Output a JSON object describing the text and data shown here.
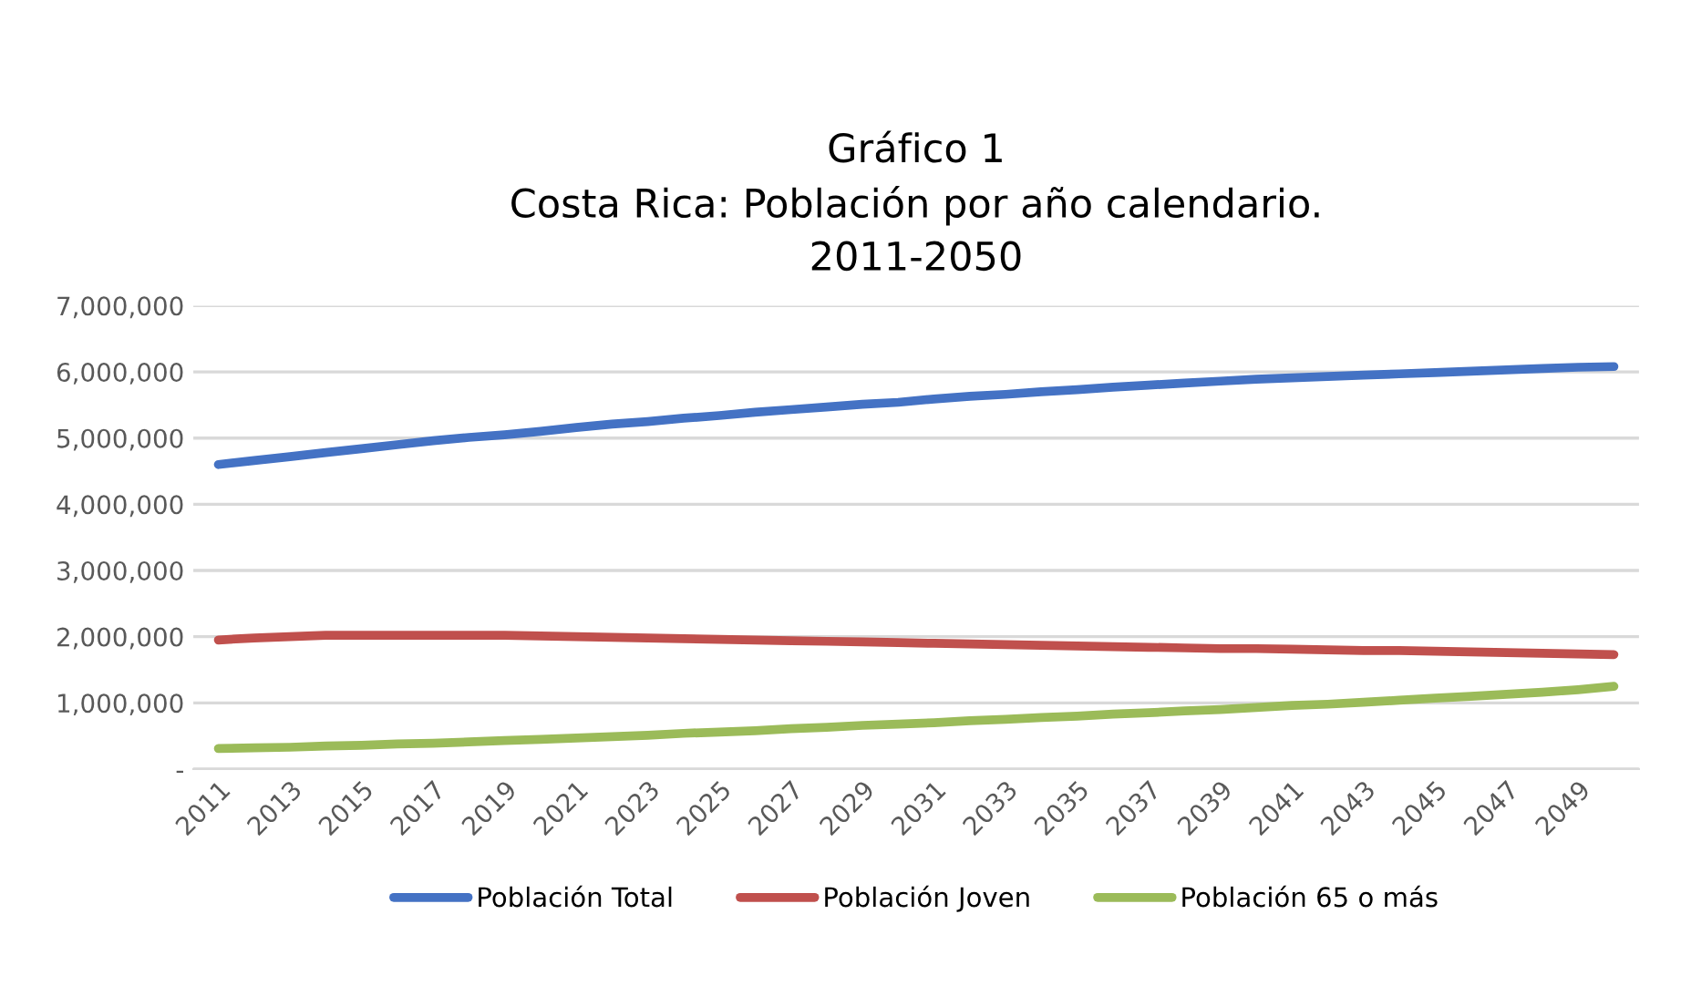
{
  "chart_data": {
    "type": "line",
    "title": "Gráfico 1\nCosta Rica: Población por año calendario.\n2011-2050",
    "categories": [
      "2011",
      null,
      "2013",
      null,
      "2015",
      null,
      "2017",
      null,
      "2019",
      null,
      "2021",
      null,
      "2023",
      null,
      "2025",
      null,
      "2027",
      null,
      "2029",
      null,
      "2031",
      null,
      "2033",
      null,
      "2035",
      null,
      "2037",
      null,
      "2039",
      null,
      "2041",
      null,
      "2043",
      null,
      "2045",
      null,
      "2047",
      null,
      "2049",
      null
    ],
    "series": [
      {
        "name": "Población Total",
        "color": "#4472c4",
        "values": [
          4600000,
          4660000,
          4720000,
          4780000,
          4840000,
          4900000,
          4960000,
          5010000,
          5050000,
          5100000,
          5160000,
          5210000,
          5250000,
          5300000,
          5340000,
          5390000,
          5430000,
          5470000,
          5510000,
          5540000,
          5590000,
          5630000,
          5660000,
          5700000,
          5730000,
          5770000,
          5800000,
          5830000,
          5860000,
          5890000,
          5910000,
          5930000,
          5950000,
          5970000,
          5990000,
          6010000,
          6030000,
          6050000,
          6070000,
          6080000
        ]
      },
      {
        "name": "Población Joven",
        "color": "#c0504d",
        "values": [
          1950000,
          1980000,
          2000000,
          2020000,
          2020000,
          2020000,
          2020000,
          2020000,
          2020000,
          2010000,
          2000000,
          1990000,
          1980000,
          1970000,
          1960000,
          1950000,
          1940000,
          1930000,
          1920000,
          1910000,
          1900000,
          1890000,
          1880000,
          1870000,
          1860000,
          1850000,
          1840000,
          1830000,
          1820000,
          1820000,
          1810000,
          1800000,
          1790000,
          1790000,
          1780000,
          1770000,
          1760000,
          1750000,
          1740000,
          1730000
        ]
      },
      {
        "name": "Población 65 o más",
        "color": "#9bbb59",
        "values": [
          310000,
          320000,
          330000,
          350000,
          360000,
          380000,
          390000,
          410000,
          430000,
          450000,
          470000,
          490000,
          510000,
          540000,
          560000,
          580000,
          610000,
          630000,
          660000,
          680000,
          700000,
          730000,
          750000,
          780000,
          800000,
          830000,
          850000,
          880000,
          900000,
          930000,
          960000,
          980000,
          1010000,
          1040000,
          1070000,
          1100000,
          1130000,
          1160000,
          1200000,
          1250000
        ]
      }
    ],
    "ylim": [
      0,
      7000000
    ],
    "yticks": [
      {
        "value": 0,
        "label": "-"
      },
      {
        "value": 1000000,
        "label": "1,000,000"
      },
      {
        "value": 2000000,
        "label": "2,000,000"
      },
      {
        "value": 3000000,
        "label": "3,000,000"
      },
      {
        "value": 4000000,
        "label": "4,000,000"
      },
      {
        "value": 5000000,
        "label": "5,000,000"
      },
      {
        "value": 6000000,
        "label": "6,000,000"
      },
      {
        "value": 7000000,
        "label": "7,000,000"
      }
    ],
    "grid": "y",
    "legend": "bottom",
    "marker": "none",
    "line_style": "solid"
  }
}
